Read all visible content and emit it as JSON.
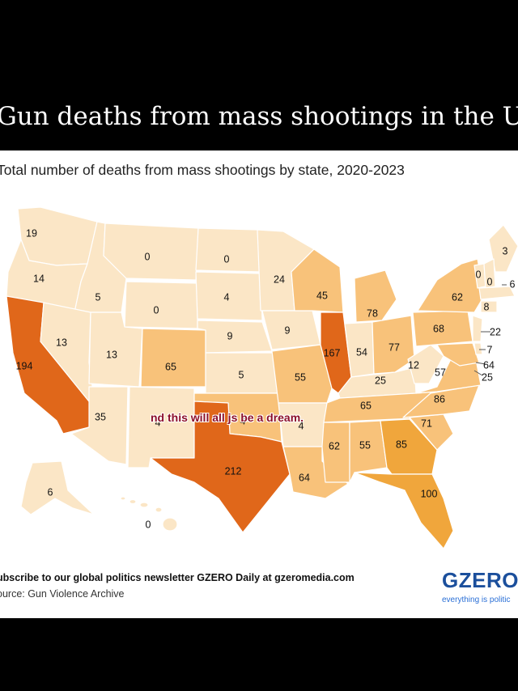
{
  "headline": "Gun deaths from mass shootings in the US",
  "subtitle": "Total number of deaths from mass shootings by state, 2020-2023",
  "caption": "nd this will all js be a dream.",
  "footer": {
    "newsletter": "ubscribe to our global politics newsletter GZERO Daily at gzeromedia.com",
    "source": "ource: Gun Violence Archive"
  },
  "brand": {
    "logo": "GZERO",
    "tagline": "everything is politic"
  },
  "colors": {
    "background": "#000000",
    "card": "#ffffff",
    "border": "#ffffff",
    "scale_low": "#fbe6c6",
    "scale_mid": "#f8c27a",
    "scale_high": "#f0a63c",
    "scale_top": "#e0671a"
  },
  "chart_data": {
    "type": "choropleth",
    "title": "Gun deaths from mass shootings in the US",
    "subtitle": "Total number of deaths from mass shootings by state, 2020-2023",
    "states": [
      {
        "state": "WA",
        "value": "19"
      },
      {
        "state": "OR",
        "value": "14"
      },
      {
        "state": "CA",
        "value": "194"
      },
      {
        "state": "ID",
        "value": "5"
      },
      {
        "state": "NV",
        "value": "13"
      },
      {
        "state": "MT",
        "value": "0"
      },
      {
        "state": "WY",
        "value": "0"
      },
      {
        "state": "UT",
        "value": "13"
      },
      {
        "state": "AZ",
        "value": "35"
      },
      {
        "state": "CO",
        "value": "65"
      },
      {
        "state": "NM",
        "value": "4"
      },
      {
        "state": "ND",
        "value": "0"
      },
      {
        "state": "SD",
        "value": "4"
      },
      {
        "state": "NE",
        "value": "9"
      },
      {
        "state": "KS",
        "value": "5"
      },
      {
        "state": "OK",
        "value": "4"
      },
      {
        "state": "TX",
        "value": "212"
      },
      {
        "state": "MN",
        "value": "24"
      },
      {
        "state": "IA",
        "value": "9"
      },
      {
        "state": "MO",
        "value": "55"
      },
      {
        "state": "AR",
        "value": "4"
      },
      {
        "state": "LA",
        "value": "64"
      },
      {
        "state": "WI",
        "value": "45"
      },
      {
        "state": "IL",
        "value": "167"
      },
      {
        "state": "MI",
        "value": "78"
      },
      {
        "state": "IN",
        "value": "54"
      },
      {
        "state": "OH",
        "value": "77"
      },
      {
        "state": "KY",
        "value": "25"
      },
      {
        "state": "TN",
        "value": "65"
      },
      {
        "state": "MS",
        "value": "62"
      },
      {
        "state": "AL",
        "value": "55"
      },
      {
        "state": "GA",
        "value": "85"
      },
      {
        "state": "FL",
        "value": "100"
      },
      {
        "state": "SC",
        "value": "71"
      },
      {
        "state": "NC",
        "value": "86"
      },
      {
        "state": "VA",
        "value": "57"
      },
      {
        "state": "WV",
        "value": "12"
      },
      {
        "state": "PA",
        "value": "68"
      },
      {
        "state": "NY",
        "value": "62"
      },
      {
        "state": "ME",
        "value": "3"
      },
      {
        "state": "VT",
        "value": "0"
      },
      {
        "state": "NH",
        "value": "0"
      },
      {
        "state": "MA",
        "value": "6"
      },
      {
        "state": "CT",
        "value": "8"
      },
      {
        "state": "NJ",
        "value": "22"
      },
      {
        "state": "DE",
        "value": "7"
      },
      {
        "state": "MD",
        "value": "64"
      },
      {
        "state": "DC",
        "value": "25"
      },
      {
        "state": "AK",
        "value": "6"
      },
      {
        "state": "HI",
        "value": "0"
      }
    ]
  }
}
